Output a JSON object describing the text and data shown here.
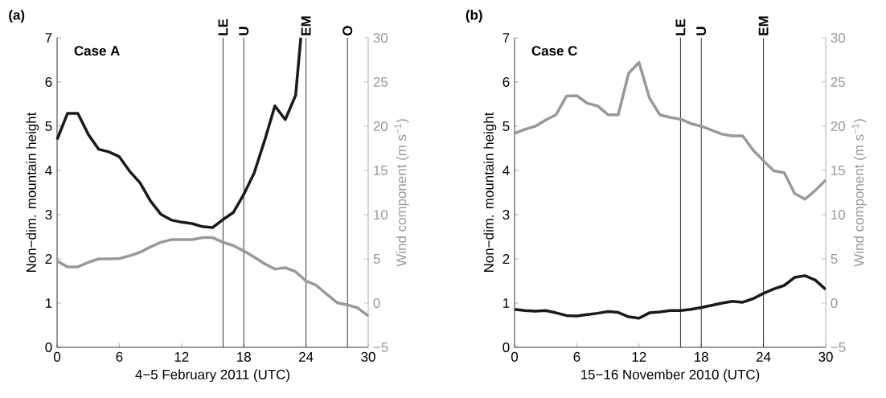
{
  "chart_data": [
    {
      "type": "line",
      "xlabel": "4−5 February 2011 (UTC)",
      "ylabel": "Non−dim. mountain height",
      "y2label": "Wind component (m s$^{−1}$)",
      "x": [
        0,
        1,
        2,
        3,
        4,
        5,
        6,
        7,
        8,
        9,
        10,
        11,
        12,
        13,
        14,
        15,
        16,
        17,
        18,
        19,
        20,
        21,
        22,
        23,
        24,
        25,
        26,
        27,
        28,
        29,
        30
      ],
      "series": [
        {
          "color": "#1a1a1a",
          "x": [
            0,
            1,
            2,
            3,
            4,
            5,
            6,
            7,
            8,
            9,
            10,
            11,
            12,
            13,
            14,
            15,
            16,
            17,
            18,
            19,
            20,
            21,
            22,
            23,
            23.5
          ],
          "values": [
            4.7,
            5.29,
            5.29,
            4.82,
            4.48,
            4.42,
            4.31,
            3.98,
            3.72,
            3.31,
            3.01,
            2.88,
            2.83,
            2.8,
            2.73,
            2.71,
            2.89,
            3.05,
            3.46,
            3.94,
            4.67,
            5.46,
            5.15,
            5.7,
            7.0
          ]
        },
        {
          "color": "#999999",
          "axis": "y2",
          "values": [
            4.75,
            4.1,
            4.1,
            4.6,
            5.0,
            5.0,
            5.05,
            5.35,
            5.75,
            6.35,
            6.87,
            7.17,
            7.17,
            7.17,
            7.4,
            7.4,
            6.87,
            6.5,
            5.9,
            5.2,
            4.45,
            3.85,
            4.0,
            3.55,
            2.5,
            2.0,
            1.0,
            0.05,
            -0.2,
            -0.55,
            -1.45
          ]
        }
      ],
      "xlim": [
        0,
        30
      ],
      "xticks": [
        0,
        6,
        12,
        18,
        24,
        30
      ],
      "ylim": [
        0,
        7
      ],
      "yticks": [
        0,
        1,
        2,
        3,
        4,
        5,
        6,
        7
      ],
      "y2lim": [
        -5,
        30
      ],
      "y2ticks": [
        {
          "value": -5,
          "label": "−5"
        },
        0,
        5,
        10,
        15,
        20,
        25,
        30
      ],
      "ref_lines": [
        {
          "axis": "x",
          "value": 16,
          "label": "LE"
        },
        {
          "axis": "x",
          "value": 18,
          "label": "U"
        },
        {
          "axis": "x",
          "value": 24,
          "label": "EM"
        },
        {
          "axis": "x",
          "value": 28,
          "label": "O"
        }
      ],
      "annotations": [
        "(a)",
        "Case A"
      ]
    },
    {
      "type": "line",
      "xlabel": "15−16 November 2010 (UTC)",
      "ylabel": "Non−dim. mountain height",
      "y2label": "Wind component (m s$^{−1}$)",
      "x": [
        0,
        1,
        2,
        3,
        4,
        5,
        6,
        7,
        8,
        9,
        10,
        11,
        12,
        13,
        14,
        15,
        16,
        17,
        18,
        19,
        20,
        21,
        22,
        23,
        24,
        25,
        26,
        27,
        28,
        29,
        30
      ],
      "series": [
        {
          "color": "#1a1a1a",
          "values": [
            0.86,
            0.83,
            0.82,
            0.83,
            0.78,
            0.72,
            0.71,
            0.74,
            0.77,
            0.81,
            0.79,
            0.69,
            0.66,
            0.78,
            0.8,
            0.83,
            0.83,
            0.86,
            0.9,
            0.95,
            1.0,
            1.04,
            1.02,
            1.1,
            1.22,
            1.32,
            1.4,
            1.58,
            1.62,
            1.52,
            1.31
          ]
        },
        {
          "color": "#999999",
          "axis": "y2",
          "values": [
            19.2,
            19.65,
            20.0,
            20.7,
            21.3,
            23.4,
            23.45,
            22.6,
            22.3,
            21.3,
            21.3,
            26.0,
            27.2,
            23.2,
            21.3,
            21.0,
            20.8,
            20.3,
            20.0,
            19.55,
            19.1,
            18.9,
            18.9,
            17.3,
            16.1,
            14.95,
            14.75,
            12.4,
            11.75,
            12.75,
            13.9
          ]
        }
      ],
      "xlim": [
        0,
        30
      ],
      "xticks": [
        0,
        6,
        12,
        18,
        24,
        30
      ],
      "ylim": [
        0,
        7
      ],
      "yticks": [
        0,
        1,
        2,
        3,
        4,
        5,
        6,
        7
      ],
      "y2lim": [
        -5,
        30
      ],
      "y2ticks": [
        {
          "value": -5,
          "label": "−5"
        },
        0,
        5,
        10,
        15,
        20,
        25,
        30
      ],
      "ref_lines": [
        {
          "axis": "x",
          "value": 16,
          "label": "LE"
        },
        {
          "axis": "x",
          "value": 18,
          "label": "U"
        },
        {
          "axis": "x",
          "value": 24,
          "label": "EM"
        }
      ],
      "annotations": [
        "(b)",
        "Case C"
      ]
    }
  ]
}
